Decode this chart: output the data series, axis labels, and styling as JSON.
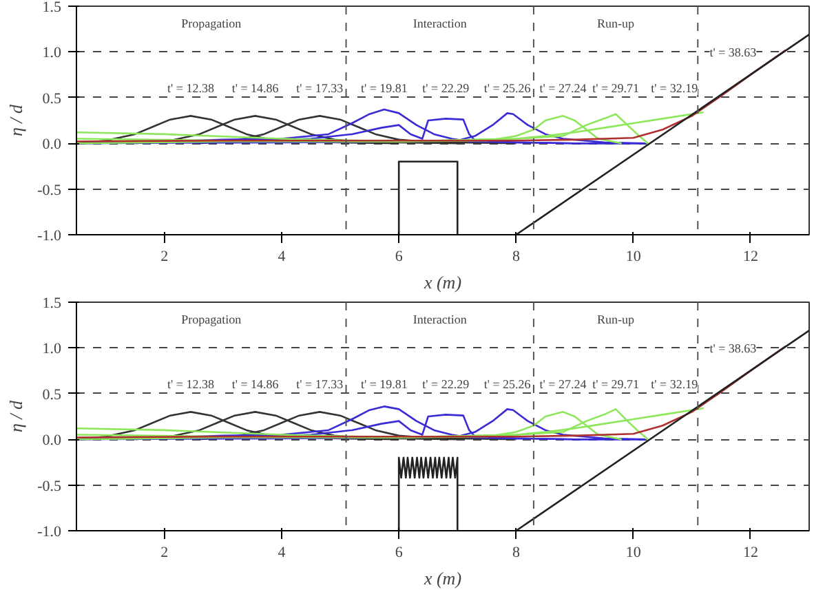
{
  "chart_data": [
    {
      "type": "line",
      "xlabel": "x (m)",
      "ylabel": "η / d",
      "xlim": [
        0.5,
        13
      ],
      "ylim": [
        -1,
        1.5
      ],
      "xticks": [
        2,
        4,
        6,
        8,
        10,
        12
      ],
      "yticks": [
        {
          "value": -1,
          "label": "-1.0"
        },
        {
          "value": -0.5,
          "label": "-0.5"
        },
        {
          "value": 0,
          "label": "0.0"
        },
        {
          "value": 0.5,
          "label": "0.5"
        },
        {
          "value": 1,
          "label": "1.0"
        },
        {
          "value": 1.5,
          "label": "1.5"
        }
      ],
      "grid": "y",
      "line_style": "solid",
      "marker": "none",
      "ref_lines": [
        {
          "axis": "x",
          "value": 5.1,
          "label": null,
          "color": "#555555",
          "line_style": "dashed"
        },
        {
          "axis": "x",
          "value": 8.3,
          "label": null,
          "color": "#555555",
          "line_style": "dashed"
        },
        {
          "axis": "x",
          "value": 11.1,
          "label": null,
          "color": "#555555",
          "line_style": "dashed"
        }
      ],
      "annotations": [
        "Propagation",
        "Interaction",
        "Run-up",
        "t' = 12.38",
        "t' = 14.86",
        "t' = 17.33",
        "t' = 19.81",
        "t' = 22.29",
        "t' = 25.26",
        "t' = 27.24",
        "t' = 29.71",
        "t' = 32.19",
        "t' = 38.63"
      ],
      "series": [
        {
          "color": "#333333",
          "x": [
            0.5,
            1.0,
            1.5,
            1.8,
            2.1,
            2.45,
            2.8,
            3.1,
            3.4,
            3.8,
            4.2,
            5.0,
            6.0
          ],
          "values": [
            0,
            0.03,
            0.1,
            0.18,
            0.26,
            0.3,
            0.26,
            0.18,
            0.1,
            0.04,
            0.02,
            0.01,
            0
          ]
        },
        {
          "color": "#333333",
          "x": [
            1.5,
            2.1,
            2.6,
            2.9,
            3.2,
            3.55,
            3.9,
            4.2,
            4.5,
            4.9,
            5.3,
            6.0,
            7.0
          ],
          "values": [
            0,
            0.03,
            0.1,
            0.18,
            0.26,
            0.3,
            0.26,
            0.18,
            0.1,
            0.04,
            0.02,
            0.01,
            0
          ]
        },
        {
          "color": "#333333",
          "x": [
            2.6,
            3.2,
            3.7,
            4.0,
            4.3,
            4.65,
            5.0,
            5.3,
            5.6,
            6.0,
            6.4,
            7.0,
            8.0
          ],
          "values": [
            0,
            0.03,
            0.1,
            0.18,
            0.26,
            0.3,
            0.26,
            0.18,
            0.1,
            0.04,
            0.02,
            0.01,
            0
          ]
        },
        {
          "color": "#3a2bd6",
          "x": [
            0.5,
            2,
            3,
            4,
            4.8,
            5.2,
            5.5,
            5.75,
            6.0,
            6.3,
            6.6,
            6.9,
            7.2,
            8,
            9,
            10.2
          ],
          "values": [
            0,
            0.02,
            0.04,
            0.05,
            0.1,
            0.22,
            0.32,
            0.37,
            0.33,
            0.2,
            0.1,
            0.05,
            0.02,
            0.01,
            0,
            0
          ]
        },
        {
          "color": "#3a2bd6",
          "x": [
            0.5,
            3,
            4.5,
            5.2,
            5.7,
            6.0,
            6.2,
            6.4,
            6.5,
            6.8,
            7.1,
            7.2,
            7.3,
            8,
            9,
            10.2
          ],
          "values": [
            0,
            0.02,
            0.05,
            0.1,
            0.17,
            0.2,
            0.1,
            0.05,
            0.25,
            0.27,
            0.26,
            0.1,
            0.03,
            0.01,
            0,
            0
          ]
        },
        {
          "color": "#3a2bd6",
          "x": [
            0.5,
            4,
            6,
            7.0,
            7.3,
            7.6,
            7.85,
            7.95,
            8.2,
            8.5,
            8.8,
            9.5,
            10.2
          ],
          "values": [
            0,
            0.01,
            0.02,
            0.03,
            0.08,
            0.2,
            0.33,
            0.32,
            0.2,
            0.1,
            0.05,
            0.01,
            0
          ]
        },
        {
          "color": "#8ee65a",
          "x": [
            0.5,
            2,
            4,
            6,
            7.5,
            8.0,
            8.3,
            8.5,
            8.8,
            9.0,
            9.2,
            9.4,
            9.8
          ],
          "values": [
            0.12,
            0.1,
            0.05,
            0.02,
            0.03,
            0.08,
            0.15,
            0.25,
            0.3,
            0.25,
            0.15,
            0.05,
            0
          ]
        },
        {
          "color": "#8ee65a",
          "x": [
            0.5,
            3,
            6,
            8.0,
            8.8,
            9.2,
            9.5,
            9.7,
            9.9,
            10.1,
            10.25
          ],
          "values": [
            0.05,
            0.03,
            0.02,
            0.05,
            0.08,
            0.2,
            0.27,
            0.32,
            0.2,
            0.08,
            0
          ]
        },
        {
          "color": "#8ee65a",
          "x": [
            0.5,
            3,
            6,
            8.0,
            8.5,
            9.0,
            9.5,
            10.0,
            10.5,
            11.0,
            11.2
          ],
          "values": [
            0,
            0.02,
            0.02,
            0.05,
            0.08,
            0.12,
            0.17,
            0.22,
            0.27,
            0.32,
            0.34
          ]
        },
        {
          "color": "#b03030",
          "x": [
            0.5,
            3,
            6,
            8,
            9,
            10,
            10.5,
            11,
            11.5,
            12,
            12.6
          ],
          "values": [
            0.02,
            0.03,
            0.03,
            0.03,
            0.04,
            0.06,
            0.15,
            0.3,
            0.52,
            0.75,
            1.02
          ]
        },
        {
          "color": "#222222",
          "x": [
            8,
            13
          ],
          "values": [
            -1,
            1.19
          ]
        },
        {
          "color": "#222222",
          "x": [
            6,
            6,
            7,
            7
          ],
          "values": [
            -1,
            -0.2,
            -0.2,
            -1
          ]
        }
      ]
    },
    {
      "type": "line",
      "xlabel": "x (m)",
      "ylabel": "η / d",
      "xlim": [
        0.5,
        13
      ],
      "ylim": [
        -1,
        1.5
      ],
      "xticks": [
        2,
        4,
        6,
        8,
        10,
        12
      ],
      "yticks": [
        {
          "value": -1,
          "label": "-1.0"
        },
        {
          "value": -0.5,
          "label": "-0.5"
        },
        {
          "value": 0,
          "label": "0.0"
        },
        {
          "value": 0.5,
          "label": "0.5"
        },
        {
          "value": 1,
          "label": "1.0"
        },
        {
          "value": 1.5,
          "label": "1.5"
        }
      ],
      "grid": "y",
      "line_style": "solid",
      "marker": "none",
      "ref_lines": [
        {
          "axis": "x",
          "value": 5.1,
          "label": null,
          "color": "#555555",
          "line_style": "dashed"
        },
        {
          "axis": "x",
          "value": 8.3,
          "label": null,
          "color": "#555555",
          "line_style": "dashed"
        },
        {
          "axis": "x",
          "value": 11.1,
          "label": null,
          "color": "#555555",
          "line_style": "dashed"
        }
      ],
      "annotations": [
        "Propagation",
        "Interaction",
        "Run-up",
        "t' = 12.38",
        "t' = 14.86",
        "t' = 17.33",
        "t' = 19.81",
        "t' = 22.29",
        "t' = 25.26",
        "t' = 27.24",
        "t' = 29.71",
        "t' = 32.19",
        "t' = 38.63"
      ],
      "series": [
        {
          "color": "#333333",
          "x": [
            0.5,
            1.0,
            1.5,
            1.8,
            2.1,
            2.45,
            2.8,
            3.1,
            3.4,
            3.8,
            4.2,
            5.0,
            6.0
          ],
          "values": [
            0,
            0.03,
            0.1,
            0.18,
            0.26,
            0.3,
            0.26,
            0.18,
            0.1,
            0.04,
            0.02,
            0.01,
            0
          ]
        },
        {
          "color": "#333333",
          "x": [
            1.5,
            2.1,
            2.6,
            2.9,
            3.2,
            3.55,
            3.9,
            4.2,
            4.5,
            4.9,
            5.3,
            6.0,
            7.0
          ],
          "values": [
            0,
            0.03,
            0.1,
            0.18,
            0.26,
            0.3,
            0.26,
            0.18,
            0.1,
            0.04,
            0.02,
            0.01,
            0
          ]
        },
        {
          "color": "#333333",
          "x": [
            2.6,
            3.2,
            3.7,
            4.0,
            4.3,
            4.65,
            5.0,
            5.3,
            5.6,
            6.0,
            6.4,
            7.0,
            8.0
          ],
          "values": [
            0,
            0.03,
            0.1,
            0.18,
            0.26,
            0.3,
            0.26,
            0.18,
            0.1,
            0.04,
            0.02,
            0.01,
            0
          ]
        },
        {
          "color": "#3a2bd6",
          "x": [
            0.5,
            2,
            3,
            4,
            4.8,
            5.2,
            5.5,
            5.75,
            6.0,
            6.3,
            6.6,
            6.9,
            7.2,
            8,
            9,
            10.2
          ],
          "values": [
            0,
            0.02,
            0.04,
            0.05,
            0.1,
            0.22,
            0.32,
            0.36,
            0.33,
            0.2,
            0.1,
            0.05,
            0.02,
            0.01,
            0,
            0
          ]
        },
        {
          "color": "#3a2bd6",
          "x": [
            0.5,
            3,
            4.5,
            5.2,
            5.7,
            6.0,
            6.2,
            6.4,
            6.5,
            6.8,
            7.1,
            7.2,
            7.3,
            8,
            9,
            10.2
          ],
          "values": [
            0,
            0.02,
            0.05,
            0.1,
            0.17,
            0.2,
            0.1,
            0.05,
            0.25,
            0.27,
            0.26,
            0.1,
            0.03,
            0.01,
            0,
            0
          ]
        },
        {
          "color": "#3a2bd6",
          "x": [
            0.5,
            4,
            6,
            7.0,
            7.3,
            7.6,
            7.85,
            7.95,
            8.2,
            8.5,
            8.8,
            9.5,
            10.2
          ],
          "values": [
            0,
            0.01,
            0.02,
            0.03,
            0.08,
            0.2,
            0.33,
            0.32,
            0.2,
            0.1,
            0.05,
            0.01,
            0
          ]
        },
        {
          "color": "#8ee65a",
          "x": [
            0.5,
            2,
            4,
            6,
            7.5,
            8.0,
            8.3,
            8.5,
            8.8,
            9.0,
            9.2,
            9.4,
            9.8
          ],
          "values": [
            0.12,
            0.1,
            0.05,
            0.02,
            0.03,
            0.08,
            0.15,
            0.25,
            0.3,
            0.25,
            0.15,
            0.05,
            0
          ]
        },
        {
          "color": "#8ee65a",
          "x": [
            0.5,
            3,
            6,
            8.0,
            8.8,
            9.2,
            9.5,
            9.7,
            9.9,
            10.1,
            10.25
          ],
          "values": [
            0.05,
            0.03,
            0.02,
            0.05,
            0.08,
            0.2,
            0.27,
            0.33,
            0.2,
            0.08,
            0
          ]
        },
        {
          "color": "#8ee65a",
          "x": [
            0.5,
            3,
            6,
            8.0,
            8.5,
            9.0,
            9.5,
            10.0,
            10.5,
            11.0,
            11.2
          ],
          "values": [
            0,
            0.02,
            0.02,
            0.05,
            0.08,
            0.12,
            0.17,
            0.22,
            0.27,
            0.32,
            0.34
          ]
        },
        {
          "color": "#b03030",
          "x": [
            0.5,
            3,
            6,
            8,
            9,
            10,
            10.5,
            11,
            11.5,
            12,
            12.6
          ],
          "values": [
            0.02,
            0.03,
            0.03,
            0.03,
            0.04,
            0.06,
            0.15,
            0.3,
            0.52,
            0.75,
            1.02
          ]
        },
        {
          "color": "#222222",
          "x": [
            8,
            13
          ],
          "values": [
            -1,
            1.19
          ]
        },
        {
          "color": "#222222",
          "x": [
            6,
            6,
            6.04,
            6.08,
            6.12,
            6.15,
            6.19,
            6.23,
            6.27,
            6.31,
            6.35,
            6.38,
            6.42,
            6.46,
            6.5,
            6.54,
            6.58,
            6.62,
            6.65,
            6.69,
            6.73,
            6.77,
            6.81,
            6.85,
            6.88,
            6.92,
            6.96,
            7,
            7
          ],
          "values": [
            -1,
            -0.2,
            -0.42,
            -0.2,
            -0.42,
            -0.2,
            -0.42,
            -0.2,
            -0.42,
            -0.2,
            -0.42,
            -0.2,
            -0.42,
            -0.2,
            -0.42,
            -0.2,
            -0.42,
            -0.2,
            -0.42,
            -0.2,
            -0.42,
            -0.2,
            -0.42,
            -0.2,
            -0.42,
            -0.2,
            -0.42,
            -0.2,
            -1
          ]
        }
      ]
    }
  ]
}
